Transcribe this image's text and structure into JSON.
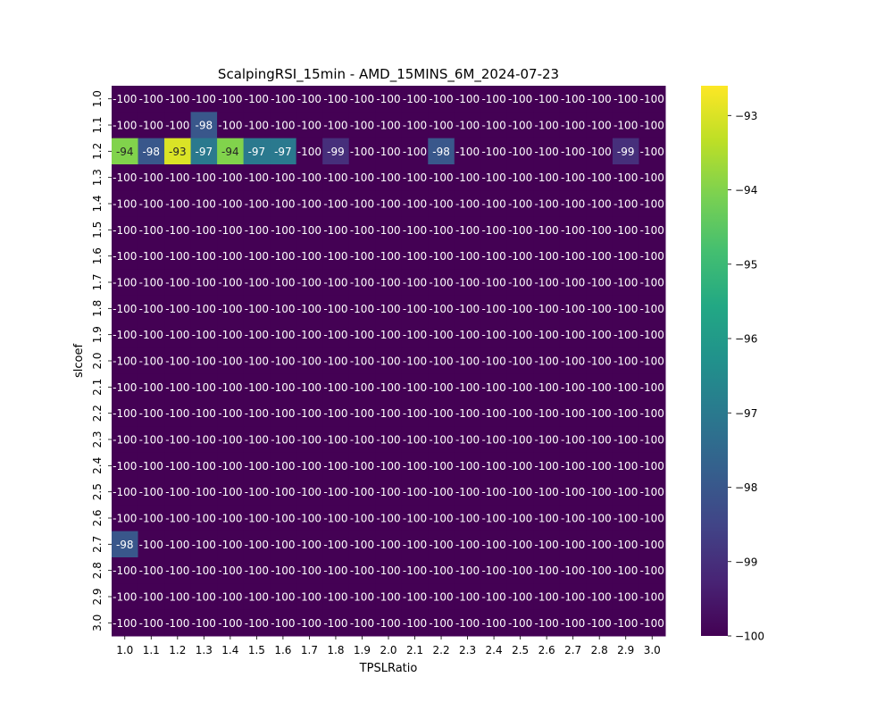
{
  "chart_data": {
    "type": "heatmap",
    "title": "ScalpingRSI_15min - AMD_15MINS_6M_2024-07-23",
    "xlabel": "TPSLRatio",
    "ylabel": "slcoef",
    "x_categories": [
      "1.0",
      "1.1",
      "1.2",
      "1.3",
      "1.4",
      "1.5",
      "1.6",
      "1.7",
      "1.8",
      "1.9",
      "2.0",
      "2.1",
      "2.2",
      "2.3",
      "2.4",
      "2.5",
      "2.6",
      "2.7",
      "2.8",
      "2.9",
      "3.0"
    ],
    "y_categories": [
      "1.0",
      "1.1",
      "1.2",
      "1.3",
      "1.4",
      "1.5",
      "1.6",
      "1.7",
      "1.8",
      "1.9",
      "2.0",
      "2.1",
      "2.2",
      "2.3",
      "2.4",
      "2.5",
      "2.6",
      "2.7",
      "2.8",
      "2.9",
      "3.0"
    ],
    "values": [
      [
        -100,
        -100,
        -100,
        -100,
        -100,
        -100,
        -100,
        -100,
        -100,
        -100,
        -100,
        -100,
        -100,
        -100,
        -100,
        -100,
        -100,
        -100,
        -100,
        -100,
        -100
      ],
      [
        -100,
        -100,
        -100,
        -98,
        -100,
        -100,
        -100,
        -100,
        -100,
        -100,
        -100,
        -100,
        -100,
        -100,
        -100,
        -100,
        -100,
        -100,
        -100,
        -100,
        -100
      ],
      [
        -94,
        -98,
        -93,
        -97,
        -94,
        -97,
        -97,
        -100,
        -99,
        -100,
        -100,
        -100,
        -98,
        -100,
        -100,
        -100,
        -100,
        -100,
        -100,
        -99,
        -100
      ],
      [
        -100,
        -100,
        -100,
        -100,
        -100,
        -100,
        -100,
        -100,
        -100,
        -100,
        -100,
        -100,
        -100,
        -100,
        -100,
        -100,
        -100,
        -100,
        -100,
        -100,
        -100
      ],
      [
        -100,
        -100,
        -100,
        -100,
        -100,
        -100,
        -100,
        -100,
        -100,
        -100,
        -100,
        -100,
        -100,
        -100,
        -100,
        -100,
        -100,
        -100,
        -100,
        -100,
        -100
      ],
      [
        -100,
        -100,
        -100,
        -100,
        -100,
        -100,
        -100,
        -100,
        -100,
        -100,
        -100,
        -100,
        -100,
        -100,
        -100,
        -100,
        -100,
        -100,
        -100,
        -100,
        -100
      ],
      [
        -100,
        -100,
        -100,
        -100,
        -100,
        -100,
        -100,
        -100,
        -100,
        -100,
        -100,
        -100,
        -100,
        -100,
        -100,
        -100,
        -100,
        -100,
        -100,
        -100,
        -100
      ],
      [
        -100,
        -100,
        -100,
        -100,
        -100,
        -100,
        -100,
        -100,
        -100,
        -100,
        -100,
        -100,
        -100,
        -100,
        -100,
        -100,
        -100,
        -100,
        -100,
        -100,
        -100
      ],
      [
        -100,
        -100,
        -100,
        -100,
        -100,
        -100,
        -100,
        -100,
        -100,
        -100,
        -100,
        -100,
        -100,
        -100,
        -100,
        -100,
        -100,
        -100,
        -100,
        -100,
        -100
      ],
      [
        -100,
        -100,
        -100,
        -100,
        -100,
        -100,
        -100,
        -100,
        -100,
        -100,
        -100,
        -100,
        -100,
        -100,
        -100,
        -100,
        -100,
        -100,
        -100,
        -100,
        -100
      ],
      [
        -100,
        -100,
        -100,
        -100,
        -100,
        -100,
        -100,
        -100,
        -100,
        -100,
        -100,
        -100,
        -100,
        -100,
        -100,
        -100,
        -100,
        -100,
        -100,
        -100,
        -100
      ],
      [
        -100,
        -100,
        -100,
        -100,
        -100,
        -100,
        -100,
        -100,
        -100,
        -100,
        -100,
        -100,
        -100,
        -100,
        -100,
        -100,
        -100,
        -100,
        -100,
        -100,
        -100
      ],
      [
        -100,
        -100,
        -100,
        -100,
        -100,
        -100,
        -100,
        -100,
        -100,
        -100,
        -100,
        -100,
        -100,
        -100,
        -100,
        -100,
        -100,
        -100,
        -100,
        -100,
        -100
      ],
      [
        -100,
        -100,
        -100,
        -100,
        -100,
        -100,
        -100,
        -100,
        -100,
        -100,
        -100,
        -100,
        -100,
        -100,
        -100,
        -100,
        -100,
        -100,
        -100,
        -100,
        -100
      ],
      [
        -100,
        -100,
        -100,
        -100,
        -100,
        -100,
        -100,
        -100,
        -100,
        -100,
        -100,
        -100,
        -100,
        -100,
        -100,
        -100,
        -100,
        -100,
        -100,
        -100,
        -100
      ],
      [
        -100,
        -100,
        -100,
        -100,
        -100,
        -100,
        -100,
        -100,
        -100,
        -100,
        -100,
        -100,
        -100,
        -100,
        -100,
        -100,
        -100,
        -100,
        -100,
        -100,
        -100
      ],
      [
        -100,
        -100,
        -100,
        -100,
        -100,
        -100,
        -100,
        -100,
        -100,
        -100,
        -100,
        -100,
        -100,
        -100,
        -100,
        -100,
        -100,
        -100,
        -100,
        -100,
        -100
      ],
      [
        -98,
        -100,
        -100,
        -100,
        -100,
        -100,
        -100,
        -100,
        -100,
        -100,
        -100,
        -100,
        -100,
        -100,
        -100,
        -100,
        -100,
        -100,
        -100,
        -100,
        -100
      ],
      [
        -100,
        -100,
        -100,
        -100,
        -100,
        -100,
        -100,
        -100,
        -100,
        -100,
        -100,
        -100,
        -100,
        -100,
        -100,
        -100,
        -100,
        -100,
        -100,
        -100,
        -100
      ],
      [
        -100,
        -100,
        -100,
        -100,
        -100,
        -100,
        -100,
        -100,
        -100,
        -100,
        -100,
        -100,
        -100,
        -100,
        -100,
        -100,
        -100,
        -100,
        -100,
        -100,
        -100
      ],
      [
        -100,
        -100,
        -100,
        -100,
        -100,
        -100,
        -100,
        -100,
        -100,
        -100,
        -100,
        -100,
        -100,
        -100,
        -100,
        -100,
        -100,
        -100,
        -100,
        -100,
        -100
      ]
    ],
    "colormap": "viridis",
    "color_range": [
      -100,
      -92.6
    ],
    "colorbar_ticks": [
      -100,
      -99,
      -98,
      -97,
      -96,
      -95,
      -94,
      -93
    ],
    "grid": false,
    "legend": "colorbar-right"
  }
}
